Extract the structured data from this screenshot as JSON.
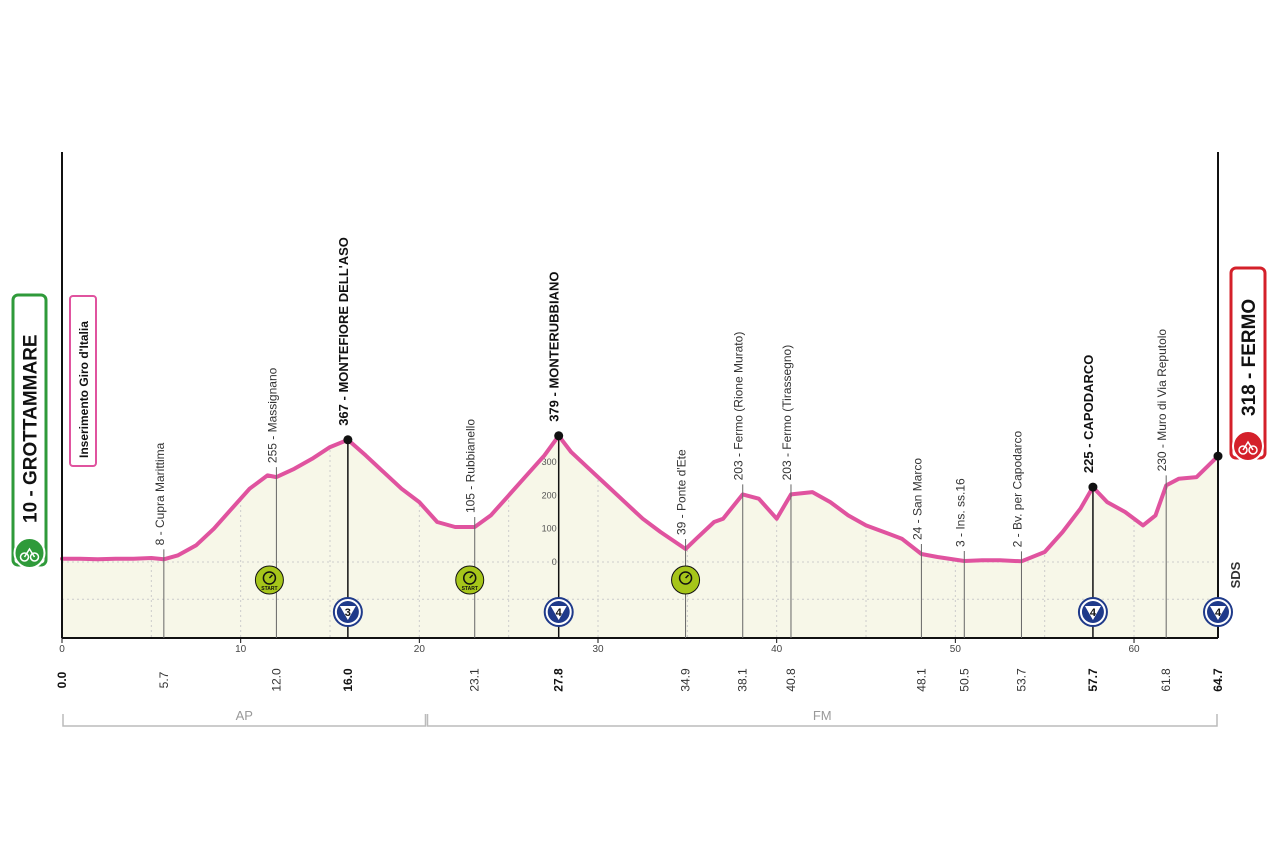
{
  "chart_data": {
    "type": "area",
    "xlabel": "",
    "ylabel": "",
    "xlim": [
      0,
      64.7
    ],
    "ylim": [
      -250,
      650
    ],
    "x_ticks": [
      0,
      10,
      20,
      30,
      40,
      50,
      60
    ],
    "elevation_ticks": [
      0,
      100,
      200,
      300
    ],
    "profile": [
      [
        0,
        10
      ],
      [
        1,
        10
      ],
      [
        2,
        8
      ],
      [
        3,
        10
      ],
      [
        4,
        10
      ],
      [
        5,
        12
      ],
      [
        5.7,
        8
      ],
      [
        6.5,
        20
      ],
      [
        7.5,
        50
      ],
      [
        8.5,
        100
      ],
      [
        9.5,
        160
      ],
      [
        10.5,
        220
      ],
      [
        11.5,
        260
      ],
      [
        12,
        255
      ],
      [
        13,
        280
      ],
      [
        14,
        310
      ],
      [
        15,
        345
      ],
      [
        16,
        367
      ],
      [
        17,
        320
      ],
      [
        18,
        270
      ],
      [
        19,
        220
      ],
      [
        20,
        180
      ],
      [
        21,
        120
      ],
      [
        22,
        105
      ],
      [
        23.1,
        105
      ],
      [
        24,
        140
      ],
      [
        25,
        200
      ],
      [
        26,
        260
      ],
      [
        27,
        320
      ],
      [
        27.8,
        379
      ],
      [
        28.5,
        330
      ],
      [
        29.5,
        280
      ],
      [
        30.5,
        230
      ],
      [
        31.5,
        180
      ],
      [
        32.5,
        130
      ],
      [
        33.5,
        90
      ],
      [
        34.9,
        39
      ],
      [
        35.5,
        70
      ],
      [
        36.5,
        120
      ],
      [
        37,
        130
      ],
      [
        38.1,
        203
      ],
      [
        39,
        190
      ],
      [
        40,
        130
      ],
      [
        40.8,
        203
      ],
      [
        42,
        210
      ],
      [
        43,
        180
      ],
      [
        44,
        140
      ],
      [
        45,
        110
      ],
      [
        46,
        90
      ],
      [
        47,
        70
      ],
      [
        48.1,
        24
      ],
      [
        49,
        15
      ],
      [
        50.5,
        3
      ],
      [
        51.5,
        5
      ],
      [
        52.5,
        5
      ],
      [
        53.7,
        2
      ],
      [
        55,
        30
      ],
      [
        56,
        90
      ],
      [
        57,
        160
      ],
      [
        57.7,
        225
      ],
      [
        58.5,
        180
      ],
      [
        59.5,
        150
      ],
      [
        60.5,
        110
      ],
      [
        61.2,
        140
      ],
      [
        61.8,
        230
      ],
      [
        62.5,
        250
      ],
      [
        63.5,
        255
      ],
      [
        64.7,
        318
      ]
    ],
    "locations": [
      {
        "km": 5.7,
        "km_label": "5.7",
        "alt_label": "8 - Cupra Marittima",
        "major": false,
        "anchor_alt": 8
      },
      {
        "km": 12.0,
        "km_label": "12.0",
        "alt_label": "255 - Massignano",
        "major": false,
        "anchor_alt": 255
      },
      {
        "km": 16.0,
        "km_label": "16.0",
        "alt_label": "367 - MONTEFIORE DELL'ASO",
        "major": true,
        "anchor_alt": 367,
        "kom": "3"
      },
      {
        "km": 23.1,
        "km_label": "23.1",
        "alt_label": "105 - Rubbianello",
        "major": false,
        "anchor_alt": 105
      },
      {
        "km": 27.8,
        "km_label": "27.8",
        "alt_label": "379 - MONTERUBBIANO",
        "major": true,
        "anchor_alt": 379,
        "kom": "4"
      },
      {
        "km": 34.9,
        "km_label": "34.9",
        "alt_label": "39 - Ponte d'Ete",
        "major": false,
        "anchor_alt": 39
      },
      {
        "km": 38.1,
        "km_label": "38.1",
        "alt_label": "203 - Fermo (Rione Murato)",
        "major": false,
        "anchor_alt": 203
      },
      {
        "km": 40.8,
        "km_label": "40.8",
        "alt_label": "203 - Fermo (Tirassegno)",
        "major": false,
        "anchor_alt": 203
      },
      {
        "km": 48.1,
        "km_label": "48.1",
        "alt_label": "24 - San Marco",
        "major": false,
        "anchor_alt": 24
      },
      {
        "km": 50.5,
        "km_label": "50.5",
        "alt_label": "3 - Ins. ss.16",
        "major": false,
        "anchor_alt": 3
      },
      {
        "km": 53.7,
        "km_label": "53.7",
        "alt_label": "2 - Bv. per Capodarco",
        "major": false,
        "anchor_alt": 2
      },
      {
        "km": 57.7,
        "km_label": "57.7",
        "alt_label": "225 - CAPODARCO",
        "major": true,
        "anchor_alt": 225,
        "kom": "4"
      },
      {
        "km": 61.8,
        "km_label": "61.8",
        "alt_label": "230 - Muro di Via Reputolo",
        "major": false,
        "anchor_alt": 230
      }
    ],
    "start": {
      "km": 0,
      "km_label": "0.0",
      "alt": 10,
      "label": "10 - GROTTAMMARE",
      "color": "#2f9a3a"
    },
    "finish": {
      "km": 64.7,
      "km_label": "64.7",
      "alt": 318,
      "label": "318 - FERMO",
      "color": "#d4202a",
      "kom": "4"
    },
    "sprint_start": {
      "from_km": 11.5,
      "to_km": 13.1,
      "color": "#a6c51a"
    },
    "tt_start": {
      "from_km": 21.8,
      "to_km": 25.3,
      "color": "#14265e"
    },
    "feed_zone": {
      "km": 34.9,
      "color": "#e8821e"
    },
    "provinces": [
      {
        "label": "AP",
        "from_km": 0,
        "to_km": 20.4
      },
      {
        "label": "FM",
        "from_km": 20.4,
        "to_km": 64.7
      }
    ],
    "banner": "Inserimento Giro d'Italia",
    "sds": "SDS",
    "colors": {
      "profile_line": "#e0539f",
      "profile_fill": "#f7f7e8",
      "grid": "#cccccc",
      "kom_fill": "#1f3a8a"
    }
  },
  "icons": {
    "start_icon": "cyclist-icon",
    "finish_icon": "cyclist-icon",
    "sprint_icon": "start-stopwatch-icon",
    "tt_icon": "start-stopwatch-icon",
    "feed_icon": "stopwatch-icon"
  }
}
